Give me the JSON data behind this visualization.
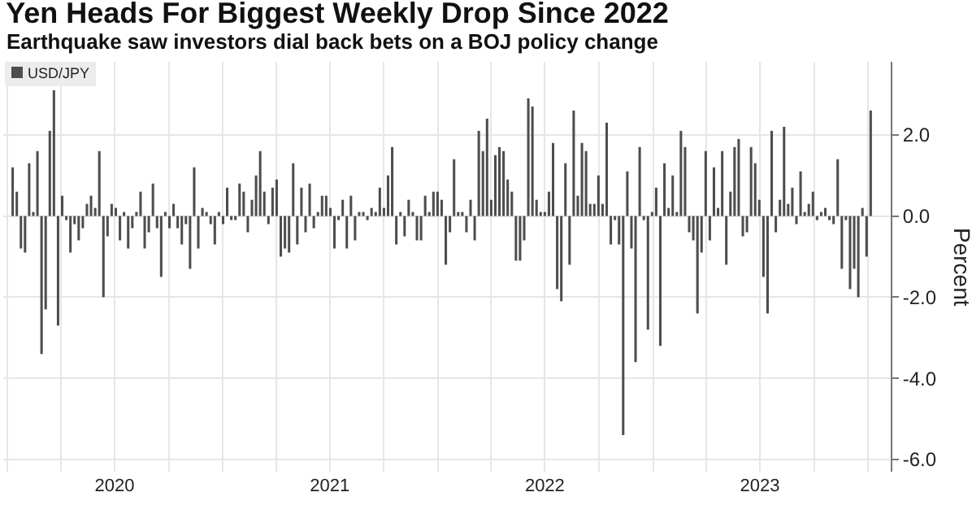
{
  "chart_data": {
    "type": "bar",
    "title": "Yen Heads For Biggest Weekly Drop Since 2022",
    "subtitle": "Earthquake saw investors dial back bets on a BOJ policy change",
    "ylabel": "Percent",
    "x": [
      "2020-01-10",
      "2020-01-17",
      "2020-01-24",
      "2020-01-31",
      "2020-02-07",
      "2020-02-14",
      "2020-02-21",
      "2020-02-28",
      "2020-03-06",
      "2020-03-13",
      "2020-03-20",
      "2020-03-27",
      "2020-04-03",
      "2020-04-10",
      "2020-04-17",
      "2020-04-24",
      "2020-05-01",
      "2020-05-08",
      "2020-05-15",
      "2020-05-22",
      "2020-05-29",
      "2020-06-05",
      "2020-06-12",
      "2020-06-19",
      "2020-06-26",
      "2020-07-03",
      "2020-07-10",
      "2020-07-17",
      "2020-07-24",
      "2020-07-31",
      "2020-08-07",
      "2020-08-14",
      "2020-08-21",
      "2020-08-28",
      "2020-09-04",
      "2020-09-11",
      "2020-09-18",
      "2020-09-25",
      "2020-10-02",
      "2020-10-09",
      "2020-10-16",
      "2020-10-23",
      "2020-10-30",
      "2020-11-06",
      "2020-11-13",
      "2020-11-20",
      "2020-11-27",
      "2020-12-04",
      "2020-12-11",
      "2020-12-18",
      "2020-12-25",
      "2021-01-01",
      "2021-01-08",
      "2021-01-15",
      "2021-01-22",
      "2021-01-29",
      "2021-02-05",
      "2021-02-12",
      "2021-02-19",
      "2021-02-26",
      "2021-03-05",
      "2021-03-12",
      "2021-03-19",
      "2021-03-26",
      "2021-04-02",
      "2021-04-09",
      "2021-04-16",
      "2021-04-23",
      "2021-04-30",
      "2021-05-07",
      "2021-05-14",
      "2021-05-21",
      "2021-05-28",
      "2021-06-04",
      "2021-06-11",
      "2021-06-18",
      "2021-06-25",
      "2021-07-02",
      "2021-07-09",
      "2021-07-16",
      "2021-07-23",
      "2021-07-30",
      "2021-08-06",
      "2021-08-13",
      "2021-08-20",
      "2021-08-27",
      "2021-09-03",
      "2021-09-10",
      "2021-09-17",
      "2021-09-24",
      "2021-10-01",
      "2021-10-08",
      "2021-10-15",
      "2021-10-22",
      "2021-10-29",
      "2021-11-05",
      "2021-11-12",
      "2021-11-19",
      "2021-11-26",
      "2021-12-03",
      "2021-12-10",
      "2021-12-17",
      "2021-12-24",
      "2021-12-31",
      "2022-01-07",
      "2022-01-14",
      "2022-01-21",
      "2022-01-28",
      "2022-02-04",
      "2022-02-11",
      "2022-02-18",
      "2022-02-25",
      "2022-03-04",
      "2022-03-11",
      "2022-03-18",
      "2022-03-25",
      "2022-04-01",
      "2022-04-08",
      "2022-04-15",
      "2022-04-22",
      "2022-04-29",
      "2022-05-06",
      "2022-05-13",
      "2022-05-20",
      "2022-05-27",
      "2022-06-03",
      "2022-06-10",
      "2022-06-17",
      "2022-06-24",
      "2022-07-01",
      "2022-07-08",
      "2022-07-15",
      "2022-07-22",
      "2022-07-29",
      "2022-08-05",
      "2022-08-12",
      "2022-08-19",
      "2022-08-26",
      "2022-09-02",
      "2022-09-09",
      "2022-09-16",
      "2022-09-23",
      "2022-09-30",
      "2022-10-07",
      "2022-10-14",
      "2022-10-21",
      "2022-10-28",
      "2022-11-04",
      "2022-11-11",
      "2022-11-18",
      "2022-11-25",
      "2022-12-02",
      "2022-12-09",
      "2022-12-16",
      "2022-12-23",
      "2022-12-30",
      "2023-01-06",
      "2023-01-13",
      "2023-01-20",
      "2023-01-27",
      "2023-02-03",
      "2023-02-10",
      "2023-02-17",
      "2023-02-24",
      "2023-03-03",
      "2023-03-10",
      "2023-03-17",
      "2023-03-24",
      "2023-03-31",
      "2023-04-07",
      "2023-04-14",
      "2023-04-21",
      "2023-04-28",
      "2023-05-05",
      "2023-05-12",
      "2023-05-19",
      "2023-05-26",
      "2023-06-02",
      "2023-06-09",
      "2023-06-16",
      "2023-06-23",
      "2023-06-30",
      "2023-07-07",
      "2023-07-14",
      "2023-07-21",
      "2023-07-28",
      "2023-08-04",
      "2023-08-11",
      "2023-08-18",
      "2023-08-25",
      "2023-09-01",
      "2023-09-08",
      "2023-09-15",
      "2023-09-22",
      "2023-09-29",
      "2023-10-06",
      "2023-10-13",
      "2023-10-20",
      "2023-10-27",
      "2023-11-03",
      "2023-11-10",
      "2023-11-17",
      "2023-11-24",
      "2023-12-01",
      "2023-12-08",
      "2023-12-15",
      "2023-12-22",
      "2023-12-29",
      "2024-01-05"
    ],
    "series": [
      {
        "name": "USD/JPY",
        "color": "#4d4d4d",
        "values": [
          1.2,
          0.6,
          -0.8,
          -0.9,
          1.3,
          0.1,
          1.6,
          -3.4,
          -2.3,
          2.1,
          3.1,
          -2.7,
          0.5,
          -0.1,
          -0.9,
          -0.2,
          -0.6,
          -0.3,
          0.3,
          0.5,
          0.2,
          1.6,
          -2.0,
          -0.5,
          0.3,
          0.2,
          -0.6,
          0.1,
          -0.8,
          -0.3,
          0.1,
          0.6,
          -0.8,
          -0.4,
          0.8,
          -0.3,
          -1.5,
          0.1,
          -0.3,
          0.3,
          -0.3,
          -0.7,
          -0.2,
          -1.3,
          1.2,
          -0.8,
          0.2,
          0.1,
          -0.2,
          -0.7,
          0.1,
          -0.2,
          0.7,
          -0.1,
          -0.1,
          0.8,
          0.6,
          -0.4,
          0.4,
          1.0,
          1.6,
          0.6,
          -0.2,
          0.7,
          0.9,
          -1.0,
          -0.8,
          -0.9,
          1.3,
          -0.7,
          0.7,
          -0.4,
          0.8,
          -0.3,
          0.1,
          0.5,
          0.5,
          0.2,
          -0.8,
          -0.1,
          0.4,
          -0.8,
          0.5,
          -0.6,
          0.1,
          0.1,
          -0.1,
          0.2,
          0.1,
          0.7,
          0.2,
          1.0,
          1.7,
          -0.7,
          0.1,
          -0.5,
          0.4,
          0.1,
          -0.6,
          -0.6,
          0.5,
          0.1,
          0.6,
          0.6,
          0.4,
          -1.2,
          -0.4,
          1.4,
          0.1,
          0.1,
          -0.4,
          0.4,
          -0.6,
          2.1,
          1.6,
          2.4,
          0.4,
          1.5,
          1.7,
          1.6,
          0.9,
          0.6,
          -1.1,
          -1.1,
          -0.6,
          2.9,
          2.7,
          0.4,
          0.1,
          0.1,
          0.6,
          1.8,
          -1.8,
          -2.1,
          1.3,
          -1.2,
          2.6,
          0.5,
          1.8,
          1.6,
          0.3,
          0.3,
          1.0,
          0.3,
          2.3,
          -0.7,
          -0.1,
          -0.7,
          -5.4,
          1.1,
          -0.8,
          -3.6,
          1.7,
          -0.1,
          -2.8,
          0.1,
          0.7,
          -3.2,
          1.3,
          0.2,
          1.0,
          0.1,
          2.1,
          1.7,
          -0.4,
          -0.6,
          -2.4,
          -0.9,
          1.6,
          -0.6,
          1.2,
          0.2,
          1.6,
          -1.2,
          0.6,
          1.7,
          1.9,
          -0.5,
          -0.4,
          1.7,
          1.3,
          0.4,
          -1.5,
          -2.4,
          2.1,
          -0.4,
          0.4,
          2.2,
          0.3,
          0.7,
          -0.2,
          1.1,
          0.1,
          0.3,
          0.6,
          -0.1,
          0.1,
          0.2,
          -0.1,
          -0.2,
          1.4,
          -1.3,
          -0.1,
          -1.8,
          -1.3,
          -2.0,
          0.2,
          -1.0,
          2.6
        ]
      }
    ],
    "xlim": [
      "2019-12-25",
      "2024-02-08"
    ],
    "xticks": [
      {
        "value": "2020-01-01",
        "label": null
      },
      {
        "value": "2020-04-01",
        "label": null
      },
      {
        "value": "2020-07-01",
        "label": "2020"
      },
      {
        "value": "2020-10-01",
        "label": null
      },
      {
        "value": "2021-01-01",
        "label": null
      },
      {
        "value": "2021-04-01",
        "label": null
      },
      {
        "value": "2021-07-01",
        "label": "2021"
      },
      {
        "value": "2021-10-01",
        "label": null
      },
      {
        "value": "2022-01-01",
        "label": null
      },
      {
        "value": "2022-04-01",
        "label": null
      },
      {
        "value": "2022-07-01",
        "label": "2022"
      },
      {
        "value": "2022-10-01",
        "label": null
      },
      {
        "value": "2023-01-01",
        "label": null
      },
      {
        "value": "2023-04-01",
        "label": null
      },
      {
        "value": "2023-07-01",
        "label": "2023"
      },
      {
        "value": "2023-10-01",
        "label": null
      },
      {
        "value": "2024-01-01",
        "label": null
      }
    ],
    "ylim": [
      -6.3,
      3.8
    ],
    "yticks": [
      {
        "value": -6,
        "label": "-6.0"
      },
      {
        "value": -4,
        "label": "-4.0"
      },
      {
        "value": -2,
        "label": "-2.0"
      },
      {
        "value": 0,
        "label": "0.0"
      },
      {
        "value": 2,
        "label": "2.0"
      }
    ],
    "grid": true,
    "legend": "top left"
  }
}
